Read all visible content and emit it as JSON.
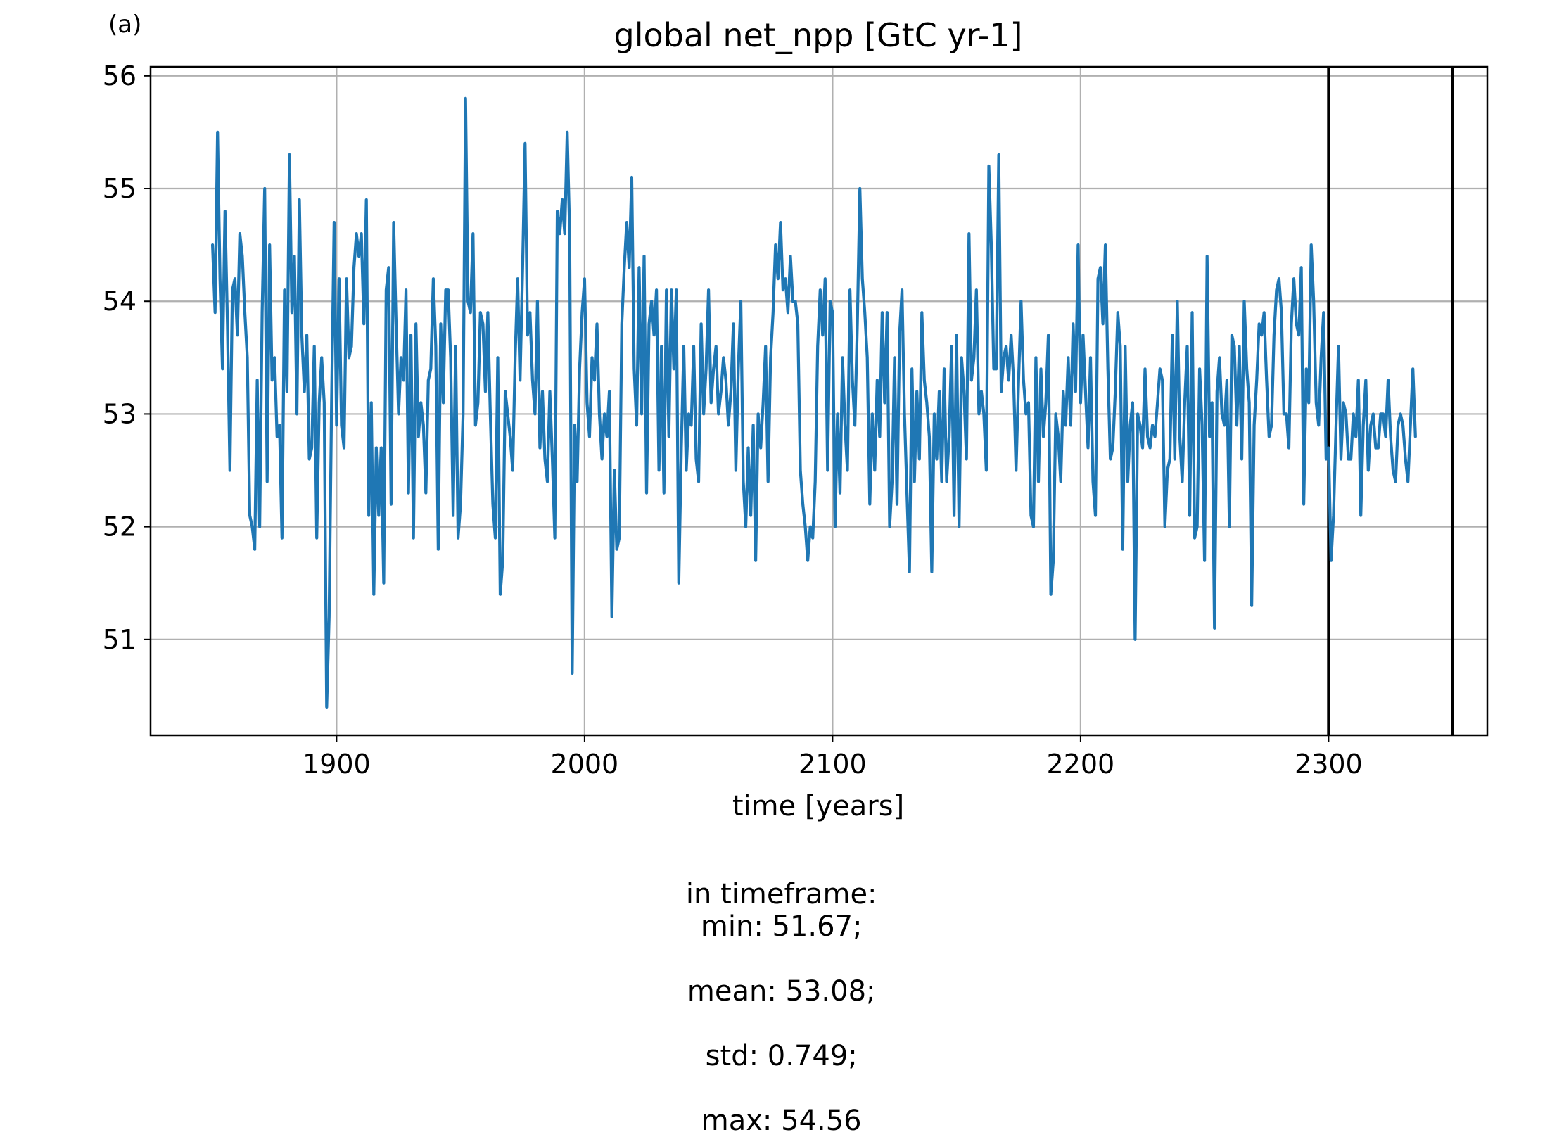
{
  "panel_label": "(a)",
  "stats": {
    "prefix": "in timeframe:",
    "min": "min: 51.67;",
    "mean": "mean: 53.08;",
    "std": "std: 0.749;",
    "max": "max: 54.56"
  },
  "chart_data": {
    "type": "line",
    "title": "global net_npp [GtC yr-1]",
    "xlabel": "time [years]",
    "ylabel": "",
    "xlim": [
      1825,
      2364
    ],
    "ylim": [
      50.15,
      56.08
    ],
    "xticks": [
      1900,
      2000,
      2100,
      2200,
      2300
    ],
    "yticks": [
      51,
      52,
      53,
      54,
      55,
      56
    ],
    "grid": true,
    "legend": "none",
    "vlines": [
      2300,
      2350
    ],
    "colors": {
      "series": "#1f77b4",
      "vlines": "#000000",
      "grid": "#b0b0b0"
    },
    "series": [
      {
        "x_start": 1850,
        "x_step": 1,
        "values": [
          54.5,
          53.9,
          55.5,
          54.2,
          53.4,
          54.8,
          53.8,
          52.5,
          54.1,
          54.2,
          53.7,
          54.6,
          54.4,
          53.9,
          53.5,
          52.1,
          52.0,
          51.8,
          53.3,
          52.0,
          53.9,
          55.0,
          52.4,
          54.5,
          53.3,
          53.5,
          52.8,
          52.9,
          51.9,
          54.1,
          53.2,
          55.3,
          53.9,
          54.4,
          53.0,
          54.9,
          53.7,
          53.2,
          53.7,
          52.6,
          52.7,
          53.6,
          51.9,
          53.1,
          53.5,
          53.1,
          50.4,
          51.2,
          53.1,
          54.7,
          52.9,
          54.2,
          52.9,
          52.7,
          54.2,
          53.5,
          53.6,
          54.3,
          54.6,
          54.4,
          54.6,
          53.8,
          54.9,
          52.1,
          53.1,
          51.4,
          52.7,
          52.1,
          52.7,
          51.5,
          54.1,
          54.3,
          52.2,
          54.7,
          53.8,
          53.0,
          53.5,
          53.3,
          54.1,
          52.3,
          53.7,
          51.9,
          53.8,
          52.8,
          53.1,
          52.9,
          52.3,
          53.3,
          53.4,
          54.2,
          53.6,
          51.8,
          53.8,
          53.1,
          54.1,
          54.1,
          53.5,
          52.1,
          53.6,
          51.9,
          52.2,
          53.0,
          55.8,
          54.0,
          53.9,
          54.6,
          52.9,
          53.1,
          53.9,
          53.8,
          53.2,
          53.9,
          53.0,
          52.2,
          51.9,
          53.5,
          51.4,
          51.7,
          53.2,
          53.0,
          52.8,
          52.5,
          53.5,
          54.2,
          53.3,
          54.3,
          55.4,
          53.7,
          53.9,
          53.3,
          53.0,
          54.0,
          52.7,
          53.2,
          52.6,
          52.4,
          53.2,
          52.6,
          51.9,
          54.8,
          54.6,
          54.9,
          54.6,
          55.5,
          54.6,
          50.7,
          52.9,
          52.4,
          53.4,
          53.9,
          54.2,
          53.1,
          52.8,
          53.5,
          53.3,
          53.8,
          53.0,
          52.6,
          53.0,
          52.8,
          53.2,
          51.2,
          52.5,
          51.8,
          51.9,
          53.8,
          54.3,
          54.7,
          54.3,
          55.1,
          53.4,
          52.9,
          54.3,
          53.0,
          54.4,
          52.3,
          53.8,
          54.0,
          53.7,
          54.1,
          52.5,
          53.6,
          52.3,
          54.1,
          52.8,
          54.1,
          53.4,
          54.1,
          51.5,
          52.7,
          53.6,
          52.5,
          53.0,
          52.9,
          53.6,
          52.6,
          52.4,
          53.8,
          53.0,
          53.4,
          54.1,
          53.1,
          53.4,
          53.6,
          53.0,
          53.2,
          53.5,
          53.3,
          52.9,
          53.2,
          53.8,
          52.5,
          53.4,
          54.0,
          52.4,
          52.0,
          52.7,
          52.1,
          52.9,
          51.7,
          53.0,
          52.7,
          53.1,
          53.6,
          52.4,
          53.5,
          53.9,
          54.5,
          54.2,
          54.7,
          54.1,
          54.2,
          53.9,
          54.4,
          54.0,
          54.0,
          53.8,
          52.5,
          52.2,
          52.0,
          51.7,
          52.0,
          51.9,
          52.4,
          53.6,
          54.1,
          53.7,
          54.2,
          52.5,
          54.0,
          53.9,
          52.0,
          53.0,
          52.3,
          53.5,
          52.9,
          52.5,
          54.1,
          53.3,
          52.9,
          53.8,
          55.0,
          54.2,
          53.9,
          53.5,
          52.2,
          53.0,
          52.5,
          53.3,
          52.8,
          53.9,
          53.1,
          53.9,
          52.0,
          52.4,
          53.5,
          52.2,
          53.7,
          54.1,
          53.0,
          52.3,
          51.6,
          53.4,
          52.4,
          53.2,
          52.6,
          53.9,
          53.3,
          53.1,
          52.8,
          51.6,
          53.0,
          52.6,
          53.2,
          52.4,
          53.4,
          52.4,
          52.8,
          53.6,
          52.1,
          53.7,
          52.0,
          53.5,
          53.2,
          52.6,
          54.6,
          53.3,
          53.5,
          54.1,
          53.0,
          53.2,
          53.0,
          52.5,
          55.2,
          54.5,
          53.4,
          53.4,
          55.3,
          53.2,
          53.5,
          53.6,
          53.3,
          53.7,
          53.3,
          52.5,
          53.3,
          54.0,
          53.3,
          53.0,
          53.1,
          52.1,
          52.0,
          53.5,
          52.4,
          53.4,
          52.8,
          53.1,
          53.7,
          51.4,
          51.7,
          53.0,
          52.8,
          52.4,
          53.2,
          52.9,
          53.5,
          52.9,
          53.8,
          53.2,
          54.5,
          53.1,
          53.7,
          53.2,
          52.7,
          53.5,
          52.4,
          52.1,
          54.2,
          54.3,
          53.8,
          54.5,
          53.4,
          52.6,
          52.7,
          53.2,
          53.9,
          53.6,
          51.8,
          53.6,
          52.4,
          52.9,
          53.1,
          51.0,
          53.0,
          52.9,
          52.7,
          53.4,
          52.8,
          52.7,
          52.9,
          52.8,
          53.1,
          53.4,
          53.3,
          52.0,
          52.5,
          52.6,
          53.7,
          52.6,
          54.0,
          52.8,
          52.4,
          53.1,
          53.6,
          52.1,
          53.9,
          51.9,
          52.0,
          53.4,
          52.9,
          51.7,
          54.4,
          52.8,
          53.1,
          51.1,
          53.2,
          53.5,
          53.0,
          52.9,
          53.3,
          52.0,
          53.7,
          53.6,
          52.9,
          53.6,
          52.6,
          54.0,
          53.4,
          53.1,
          51.3,
          52.9,
          53.3,
          53.8,
          53.7,
          53.9,
          53.3,
          52.8,
          52.9,
          53.7,
          54.1,
          54.2,
          53.9,
          53.0,
          53.0,
          52.7,
          53.8,
          54.2,
          53.8,
          53.7,
          54.3,
          52.2,
          53.4,
          53.1,
          54.5,
          54.0,
          53.1,
          52.9,
          53.5,
          53.9,
          52.6,
          52.7,
          51.7,
          52.1,
          52.9,
          53.6,
          52.6,
          53.1,
          53.0,
          52.6,
          52.6,
          53.0,
          52.8,
          53.3,
          52.1,
          52.9,
          53.3,
          52.5,
          52.9,
          53.0,
          52.7,
          52.7,
          53.0,
          53.0,
          52.8,
          53.3,
          52.8,
          52.5,
          52.4,
          52.9,
          53.0,
          52.9,
          52.6,
          52.4,
          52.9,
          53.4,
          52.8
        ]
      }
    ]
  }
}
